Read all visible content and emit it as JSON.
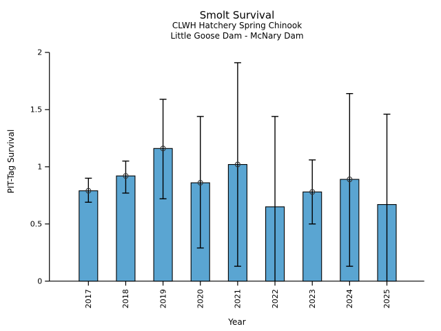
{
  "chart_data": {
    "type": "bar",
    "title": "Smolt Survival",
    "subtitle1": "CLWH Hatchery Spring Chinook",
    "subtitle2": "Little Goose Dam - McNary Dam",
    "xlabel": "Year",
    "ylabel": "PIT-Tag Survival",
    "ylim": [
      0,
      2
    ],
    "yticks": [
      0,
      0.5,
      1,
      1.5,
      2
    ],
    "ytick_labels": [
      "0",
      "0.5",
      "1",
      "1.5",
      "2"
    ],
    "categories": [
      "2017",
      "2018",
      "2019",
      "2020",
      "2021",
      "2022",
      "2023",
      "2024",
      "2025"
    ],
    "values": [
      0.79,
      0.92,
      1.16,
      0.86,
      1.02,
      0.65,
      0.78,
      0.89,
      0.67
    ],
    "error_high": [
      0.9,
      1.05,
      1.59,
      1.44,
      1.91,
      1.44,
      1.06,
      1.64,
      1.46
    ],
    "error_low": [
      0.69,
      0.77,
      0.72,
      0.29,
      0.13,
      0,
      0.5,
      0.13,
      0
    ],
    "error_low_clipped": [
      false,
      false,
      false,
      false,
      false,
      true,
      false,
      false,
      true
    ],
    "point_marker": [
      true,
      true,
      true,
      true,
      true,
      false,
      true,
      true,
      false
    ],
    "bar_color": "#5aa5d2",
    "bar_edge_color": "#000000",
    "errorbar_color": "#000000",
    "marker_color": "#333333",
    "axis_color": "#000000",
    "grid": false,
    "legend": "none"
  }
}
